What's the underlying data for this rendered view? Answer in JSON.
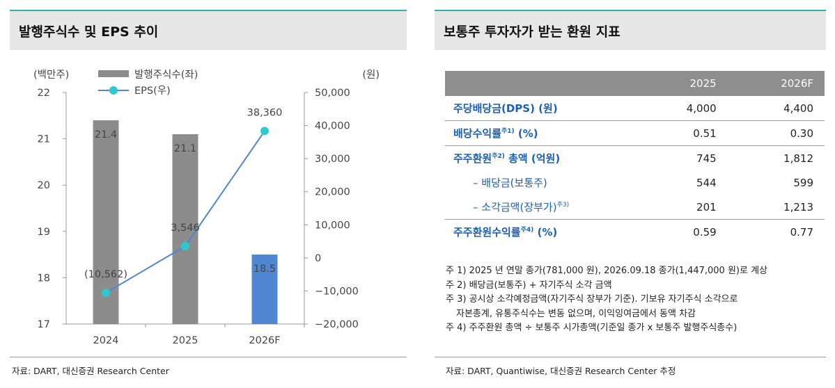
{
  "left": {
    "title": "발행주식수 및 EPS 추이",
    "source": "자료: DART, 대신증권 Research Center"
  },
  "right": {
    "title": "보통주 투자자가 받는 환원 지표",
    "source": "자료: DART, Quantiwise, 대신증권 Research Center 추정",
    "columns": [
      "2025",
      "2026F"
    ],
    "rows": [
      {
        "label": "주당배당금(DPS) (원)",
        "sup": "",
        "unit": "",
        "v2025": "4,000",
        "v2026": "4,400",
        "style": "main"
      },
      {
        "label": "배당수익률",
        "sup": "주1)",
        "unit": " (%)",
        "v2025": "0.51",
        "v2026": "0.30",
        "style": "main"
      },
      {
        "label": "주주환원",
        "sup": "주2)",
        "unit": " 총액 (억원)",
        "v2025": "745",
        "v2026": "1,812",
        "style": "main"
      },
      {
        "label": "– 배당금(보통주)",
        "sup": "",
        "unit": "",
        "v2025": "544",
        "v2026": "599",
        "style": "sub"
      },
      {
        "label": "– 소각금액(장부가)",
        "sup": "주3)",
        "unit": "",
        "v2025": "201",
        "v2026": "1,213",
        "style": "sub"
      },
      {
        "label": "주주환원수익률",
        "sup": "주4)",
        "unit": " (%)",
        "v2025": "0.59",
        "v2026": "0.77",
        "style": "main"
      }
    ],
    "notes": [
      "주 1) 2025 년 연말 종가(781,000 원), 2026.09.18 종가(1,447,000 원)로 계상",
      "주 2) 배당금(보통주) + 자기주식 소각 금액",
      "주 3) 공시상 소각예정금액(자기주식 장부가 기준). 기보유 자기주식 소각으로",
      "자본총계, 유통주식수는 변동 없으며, 이익잉여금에서 동액 차감",
      "주 4) 주주환원 총액 ÷ 보통주 시가총액(기준일 종가 x 보통주 발행주식총수)"
    ]
  },
  "chart_data": {
    "type": "bar",
    "categories": [
      "2024",
      "2025",
      "2026F"
    ],
    "series": [
      {
        "name": "발행주식수(좌)",
        "kind": "bar",
        "axis": "left",
        "values": [
          21.4,
          21.1,
          18.5
        ],
        "labels": [
          "21.4",
          "21.1",
          "18.5"
        ],
        "colors": [
          "#8c8c8c",
          "#8c8c8c",
          "#4f87d3"
        ]
      },
      {
        "name": "EPS(우)",
        "kind": "line",
        "axis": "right",
        "values": [
          -10562,
          3546,
          38360
        ],
        "labels": [
          "(10,562)",
          "3,546",
          "38,360"
        ],
        "color": "#4f87d3",
        "marker_color": "#2fc8cf"
      }
    ],
    "y_left": {
      "unit": "(백만주)",
      "range": [
        17,
        22
      ],
      "ticks": [
        "17",
        "18",
        "19",
        "20",
        "21",
        "22"
      ]
    },
    "y_right": {
      "unit": "(원)",
      "range": [
        -20000,
        50000
      ],
      "ticks": [
        "−20,000",
        "−10,000",
        "0",
        "10,000",
        "20,000",
        "30,000",
        "40,000",
        "50,000"
      ]
    },
    "legend_position": "top-left",
    "grid": false
  }
}
